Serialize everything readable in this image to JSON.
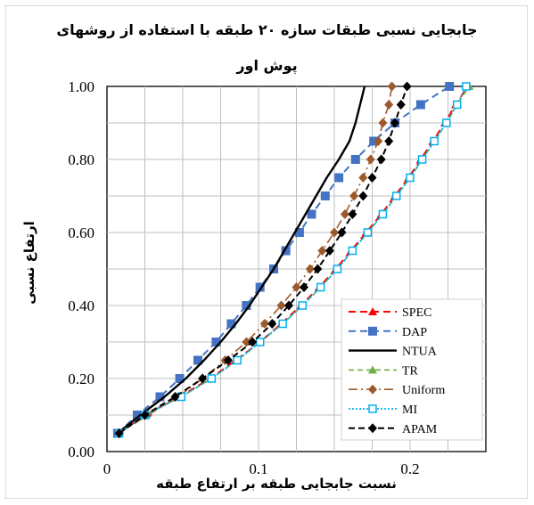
{
  "chart_data": {
    "type": "line",
    "title": "جابجایی نسبی طبقات سازه ۲۰ طبقه با استفاده از روشهای پوش اور",
    "title_line1": "جابجایی نسبی طبقات سازه ۲۰ طبقه با استفاده از روشهای",
    "title_line2": "پوش اور",
    "xlabel": "نسبت جابجایی طبقه بر ارتفاع طبقه",
    "ylabel": "ارتفاع نسبی",
    "xlim": [
      0,
      0.25
    ],
    "ylim": [
      0,
      1.0
    ],
    "x_ticks": [
      {
        "v": 0,
        "label": "0"
      },
      {
        "v": 0.1,
        "label": "0.1"
      },
      {
        "v": 0.2,
        "label": "0.2"
      }
    ],
    "y_ticks": [
      {
        "v": 0,
        "label": "0.00"
      },
      {
        "v": 0.2,
        "label": "0.20"
      },
      {
        "v": 0.4,
        "label": "0.40"
      },
      {
        "v": 0.6,
        "label": "0.60"
      },
      {
        "v": 0.8,
        "label": "0.80"
      },
      {
        "v": 1.0,
        "label": "1.00"
      }
    ],
    "grid": true,
    "legend_position": "bottom-right",
    "y": [
      0.05,
      0.1,
      0.15,
      0.2,
      0.25,
      0.3,
      0.35,
      0.4,
      0.45,
      0.5,
      0.55,
      0.6,
      0.65,
      0.7,
      0.75,
      0.8,
      0.85,
      0.9,
      0.95,
      1.0
    ],
    "series": [
      {
        "name": "SPEC",
        "color": "#ff0000",
        "dash": "8,5",
        "marker": "triangle",
        "width": 2,
        "x": [
          0.008,
          0.025,
          0.048,
          0.068,
          0.085,
          0.101,
          0.115,
          0.128,
          0.14,
          0.151,
          0.161,
          0.171,
          0.181,
          0.19,
          0.199,
          0.207,
          0.215,
          0.223,
          0.23,
          0.238
        ]
      },
      {
        "name": "DAP",
        "color": "#4472c4",
        "dash": "8,5",
        "marker": "square",
        "width": 2,
        "x": [
          0.007,
          0.02,
          0.035,
          0.048,
          0.06,
          0.072,
          0.082,
          0.092,
          0.101,
          0.11,
          0.118,
          0.127,
          0.135,
          0.144,
          0.153,
          0.164,
          0.176,
          0.19,
          0.207,
          0.226
        ]
      },
      {
        "name": "NTUA",
        "color": "#000000",
        "dash": "",
        "marker": "none",
        "width": 2.4,
        "x": [
          0.007,
          0.022,
          0.038,
          0.052,
          0.064,
          0.075,
          0.085,
          0.094,
          0.102,
          0.11,
          0.117,
          0.124,
          0.131,
          0.138,
          0.145,
          0.153,
          0.16,
          0.164,
          0.167,
          0.17
        ]
      },
      {
        "name": "TR",
        "color": "#70ad47",
        "dash": "6,4",
        "marker": "triangle",
        "width": 1.6,
        "x": [
          0.008,
          0.025,
          0.049,
          0.069,
          0.086,
          0.101,
          0.116,
          0.129,
          0.141,
          0.152,
          0.162,
          0.172,
          0.182,
          0.191,
          0.2,
          0.208,
          0.216,
          0.224,
          0.231,
          0.239
        ]
      },
      {
        "name": "Uniform",
        "color": "#9c5a2c",
        "dash": "10,4,2,4",
        "marker": "diamond",
        "width": 1.6,
        "x": [
          0.008,
          0.027,
          0.047,
          0.063,
          0.078,
          0.092,
          0.104,
          0.115,
          0.125,
          0.134,
          0.142,
          0.15,
          0.157,
          0.163,
          0.169,
          0.174,
          0.179,
          0.182,
          0.186,
          0.188
        ]
      },
      {
        "name": "MI",
        "color": "#00b0f0",
        "dash": "2,2",
        "marker": "square-open",
        "width": 1.8,
        "x": [
          0.008,
          0.025,
          0.049,
          0.069,
          0.086,
          0.101,
          0.116,
          0.129,
          0.141,
          0.152,
          0.162,
          0.172,
          0.182,
          0.191,
          0.2,
          0.208,
          0.216,
          0.224,
          0.231,
          0.237
        ]
      },
      {
        "name": "APAM",
        "color": "#000000",
        "dash": "7,4",
        "marker": "diamond",
        "width": 2,
        "x": [
          0.008,
          0.025,
          0.045,
          0.063,
          0.08,
          0.096,
          0.109,
          0.12,
          0.13,
          0.139,
          0.147,
          0.155,
          0.162,
          0.169,
          0.175,
          0.181,
          0.186,
          0.19,
          0.194,
          0.198
        ]
      }
    ]
  }
}
